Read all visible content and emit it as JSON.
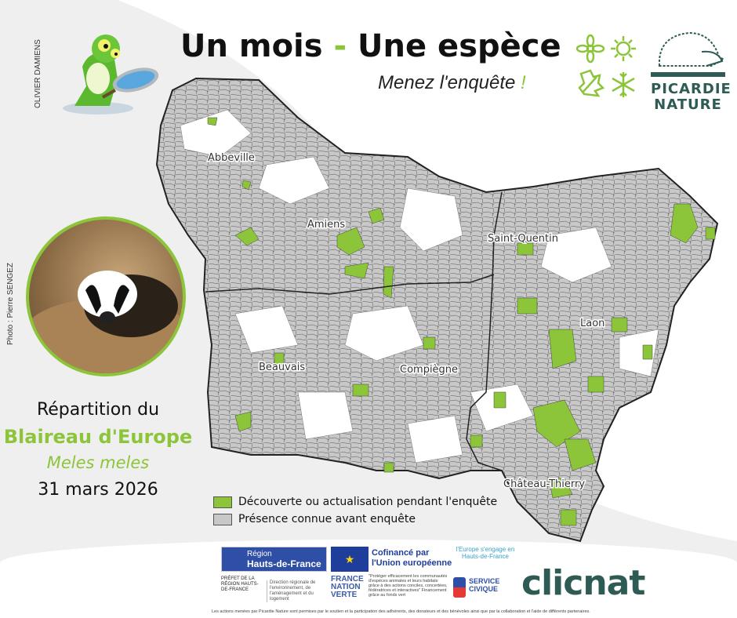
{
  "header": {
    "title_part1": "Un mois",
    "title_dash": "-",
    "title_part2": "Une espèce",
    "subtitle": "Menez l'enquête",
    "subtitle_mark": "!",
    "illustrator_credit": "OLIVIER DAMIENS"
  },
  "brand": {
    "logo_line1": "PICARDIE",
    "logo_line2": "NATURE",
    "season_icons": [
      "flower-icon",
      "sun-icon",
      "leaf-icon",
      "snowflake-icon"
    ],
    "color": "#2e5c55",
    "accent": "#8cc43a"
  },
  "photo": {
    "credit": "Photo : Pierre SENGEZ"
  },
  "species": {
    "heading": "Répartition du",
    "common_name": "Blaireau d'Europe",
    "latin_name": "Meles meles",
    "date": "31 mars 2026"
  },
  "map": {
    "towns": [
      "Abbeville",
      "Amiens",
      "Saint-Quentin",
      "Laon",
      "Beauvais",
      "Compiègne",
      "Château-Thierry"
    ],
    "legend": [
      {
        "label": "Découverte ou actualisation pendant l'enquête",
        "color": "#8cc43a"
      },
      {
        "label": "Présence connue avant enquête",
        "color": "#c8c8c8"
      }
    ]
  },
  "footer": {
    "region_line1": "Région",
    "region_line2": "Hauts-de-France",
    "eu_line1": "Cofinancé par",
    "eu_line2": "l'Union européenne",
    "europe_engage": "l'Europe s'engage en Hauts-de-France",
    "prefet": "PRÉFET DE LA RÉGION HAUTS-DE-FRANCE",
    "dreal": "Direction régionale de l'environnement, de l'aménagement et du logement",
    "france_nation_verte": "FRANCE NATION VERTE",
    "quote": "\"Protéger efficacement les communautés d'espèces animales et leurs habitats grâce à des actions conciles, concertées, fédératrices et interactives\" Financement grâce au fonds vert",
    "service_civique": "SERVICE CIVIQUE",
    "actions_text": "Les actions menées par Picardie Nature sont permises par le soutien et la participation des adhérents, des donateurs et des bénévoles ainsi que par la collaboration et l'aide de différents partenaires.",
    "clicnat": "clicnat"
  }
}
